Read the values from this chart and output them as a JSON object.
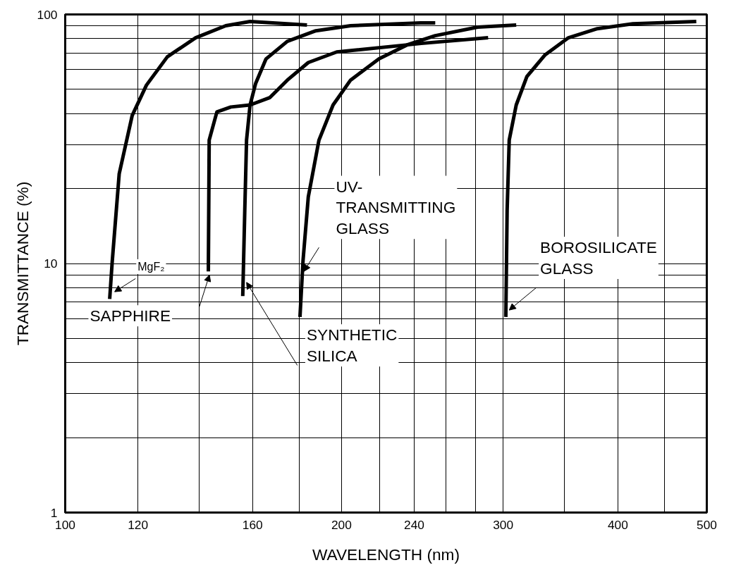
{
  "chart_data": {
    "type": "line",
    "xlabel": "WAVELENGTH (nm)",
    "ylabel": "TRANSMITTANCE (%)",
    "log": "xy",
    "grid": true,
    "marker": "none",
    "line_style": "solid",
    "xlim": [
      100,
      500
    ],
    "ylim": [
      1,
      100
    ],
    "xticks": [
      100,
      120,
      {
        "value": 140,
        "label": null
      },
      160,
      {
        "value": 180,
        "label": null
      },
      200,
      {
        "value": 220,
        "label": null
      },
      240,
      {
        "value": 260,
        "label": null
      },
      {
        "value": 280,
        "label": null
      },
      300,
      {
        "value": 350,
        "label": null
      },
      400,
      {
        "value": 450,
        "label": null
      },
      500
    ],
    "yticks": [
      1,
      {
        "value": 2,
        "label": null
      },
      {
        "value": 3,
        "label": null
      },
      {
        "value": 4,
        "label": null
      },
      {
        "value": 5,
        "label": null
      },
      {
        "value": 6,
        "label": null
      },
      {
        "value": 7,
        "label": null
      },
      {
        "value": 8,
        "label": null
      },
      {
        "value": 9,
        "label": null
      },
      10,
      {
        "value": 20,
        "label": null
      },
      {
        "value": 30,
        "label": null
      },
      {
        "value": 40,
        "label": null
      },
      {
        "value": 50,
        "label": null
      },
      {
        "value": 60,
        "label": null
      },
      {
        "value": 70,
        "label": null
      },
      {
        "value": 80,
        "label": null
      },
      {
        "value": 90,
        "label": null
      },
      100
    ],
    "series": [
      {
        "name": "MgF₂",
        "color": "#000000",
        "x": [
          111.8,
          112.5,
          114.5,
          118.3,
          122.6,
          129.2,
          138.7,
          149.6,
          159,
          183.4
        ],
        "values": [
          7.2,
          10.1,
          22.9,
          39.3,
          52,
          67.6,
          80.6,
          90.1,
          93.7,
          90.7
        ]
      },
      {
        "name": "SAPPHIRE",
        "color": "#000000",
        "x": [
          143.2,
          143.5,
          146.3,
          151.5,
          159,
          167,
          174.6,
          184,
          197.6,
          244.3,
          288.9
        ],
        "values": [
          9.3,
          31.3,
          40.6,
          42.5,
          43.3,
          46.3,
          54.5,
          64.1,
          70.7,
          76.5,
          80.6
        ]
      },
      {
        "name": "SYNTHETIC\nSILICA",
        "color": "#000000",
        "x": [
          156.1,
          156.9,
          157.6,
          159,
          161.2,
          165.5,
          174.6,
          187.5,
          204.6,
          244,
          253
        ],
        "values": [
          7.4,
          16.3,
          31.3,
          43.3,
          52.7,
          66.3,
          78,
          86,
          90.1,
          92.5,
          92.5
        ]
      },
      {
        "name": "UV-\nTRANSMITTING\nGLASS",
        "color": "#000000",
        "x": [
          180.2,
          181.6,
          184,
          189,
          195.8,
          204.6,
          219.7,
          235.8,
          253,
          281.4,
          310
        ],
        "values": [
          6.1,
          10.3,
          18.5,
          31.3,
          43.3,
          54.5,
          66.3,
          75.5,
          82.2,
          88.9,
          90.7
        ]
      },
      {
        "name": "BOROSILICATE\nGLASS",
        "color": "#000000",
        "x": [
          302,
          303,
          304.6,
          310,
          318.4,
          333,
          353.4,
          380,
          415.3,
          487
        ],
        "values": [
          6.1,
          16.3,
          31.3,
          43.3,
          56.3,
          68.6,
          80.6,
          87.7,
          91.7,
          93.7
        ]
      }
    ]
  }
}
